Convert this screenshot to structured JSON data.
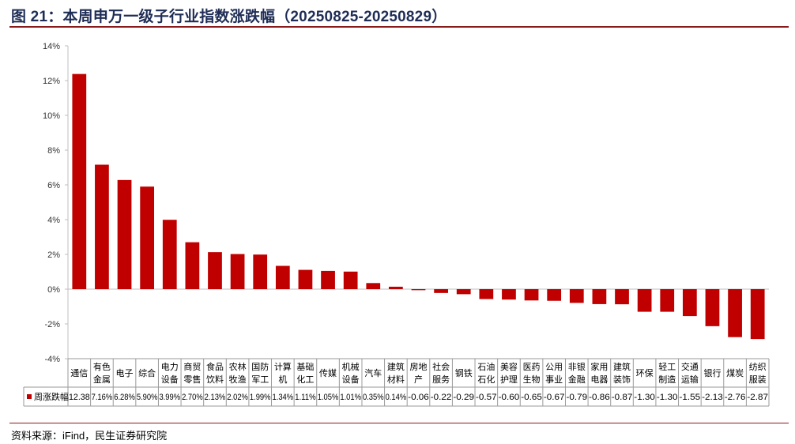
{
  "header": {
    "title": "图 21：本周申万一级子行业指数涨跌幅（20250825-20250829）"
  },
  "footer": {
    "source": "资料来源：iFind，民生证券研究院"
  },
  "colors": {
    "bar": "#c00000",
    "title": "#1f2d56",
    "rule": "#8a1a1a"
  },
  "chart_data": {
    "type": "bar",
    "title": "",
    "xlabel": "",
    "ylabel": "",
    "ylim": [
      -4,
      14
    ],
    "yticks": [
      "14%",
      "12%",
      "10%",
      "8%",
      "6%",
      "4%",
      "2%",
      "0%",
      "-2%",
      "-4%"
    ],
    "legend": "left of data table",
    "grid": false,
    "categories": [
      [
        "通信"
      ],
      [
        "有色",
        "金属"
      ],
      [
        "电子"
      ],
      [
        "综合"
      ],
      [
        "电力",
        "设备"
      ],
      [
        "商贸",
        "零售"
      ],
      [
        "食品",
        "饮料"
      ],
      [
        "农林",
        "牧渔"
      ],
      [
        "国防",
        "军工"
      ],
      [
        "计算",
        "机"
      ],
      [
        "基础",
        "化工"
      ],
      [
        "传媒"
      ],
      [
        "机械",
        "设备"
      ],
      [
        "汽车"
      ],
      [
        "建筑",
        "材料"
      ],
      [
        "房地",
        "产"
      ],
      [
        "社会",
        "服务"
      ],
      [
        "钢铁"
      ],
      [
        "石油",
        "石化"
      ],
      [
        "美容",
        "护理"
      ],
      [
        "医药",
        "生物"
      ],
      [
        "公用",
        "事业"
      ],
      [
        "非银",
        "金融"
      ],
      [
        "家用",
        "电器"
      ],
      [
        "建筑",
        "装饰"
      ],
      [
        "环保"
      ],
      [
        "轻工",
        "制造"
      ],
      [
        "交通",
        "运输"
      ],
      [
        "银行"
      ],
      [
        "煤炭"
      ],
      [
        "纺织",
        "服装"
      ]
    ],
    "series": [
      {
        "name": "周涨跌幅",
        "values": [
          12.38,
          7.16,
          6.28,
          5.9,
          3.99,
          2.7,
          2.13,
          2.02,
          1.99,
          1.34,
          1.11,
          1.05,
          1.01,
          0.35,
          0.14,
          -0.06,
          -0.22,
          -0.29,
          -0.57,
          -0.6,
          -0.65,
          -0.67,
          -0.79,
          -0.86,
          -0.87,
          -1.3,
          -1.3,
          -1.55,
          -2.13,
          -2.76,
          -2.87
        ],
        "labels": [
          "12.38",
          "7.16%",
          "6.28%",
          "5.90%",
          "3.99%",
          "2.70%",
          "2.13%",
          "2.02%",
          "1.99%",
          "1.34%",
          "1.11%",
          "1.05%",
          "1.01%",
          "0.35%",
          "0.14%",
          "-0.06",
          "-0.22",
          "-0.29",
          "-0.57",
          "-0.60",
          "-0.65",
          "-0.67",
          "-0.79",
          "-0.86",
          "-0.87",
          "-1.30",
          "-1.30",
          "-1.55",
          "-2.13",
          "-2.76",
          "-2.87"
        ]
      }
    ]
  }
}
